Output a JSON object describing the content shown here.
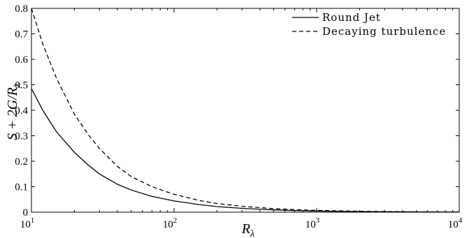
{
  "chart_data": {
    "type": "line",
    "xscale": "log",
    "xlim": [
      10,
      10000
    ],
    "ylim": [
      0,
      0.8
    ],
    "xlabel": "R_λ",
    "ylabel": "S + 2G/R_λ",
    "xticks": [
      {
        "value": 10,
        "base": "10",
        "exp": "1"
      },
      {
        "value": 100,
        "base": "10",
        "exp": "2"
      },
      {
        "value": 1000,
        "base": "10",
        "exp": "3"
      },
      {
        "value": 10000,
        "base": "10",
        "exp": "4"
      }
    ],
    "yticks": [
      {
        "value": 0,
        "label": "0"
      },
      {
        "value": 0.1,
        "label": "0.1"
      },
      {
        "value": 0.2,
        "label": "0.2"
      },
      {
        "value": 0.3,
        "label": "0.3"
      },
      {
        "value": 0.4,
        "label": "0.4"
      },
      {
        "value": 0.5,
        "label": "0.5"
      },
      {
        "value": 0.6,
        "label": "0.6"
      },
      {
        "value": 0.7,
        "label": "0.7"
      },
      {
        "value": 0.8,
        "label": "0.8"
      }
    ],
    "grid": false,
    "legend_position": "top-right",
    "series": [
      {
        "name": "Round Jet",
        "style": "solid",
        "color": "#000000",
        "x": [
          10,
          12,
          15,
          20,
          25,
          30,
          40,
          50,
          70,
          100,
          150,
          200,
          300,
          500,
          700,
          1000,
          2000,
          5000,
          10000
        ],
        "y": [
          0.485,
          0.4,
          0.315,
          0.235,
          0.185,
          0.15,
          0.11,
          0.087,
          0.062,
          0.044,
          0.03,
          0.022,
          0.015,
          0.009,
          0.0065,
          0.0045,
          0.0023,
          0.0009,
          0.0005
        ]
      },
      {
        "name": "Decaying turbulence",
        "style": "dashed",
        "color": "#000000",
        "x": [
          10,
          12,
          15,
          20,
          25,
          30,
          40,
          50,
          70,
          100,
          150,
          200,
          300,
          500,
          700,
          1000,
          2000,
          5000,
          10000
        ],
        "y": [
          0.8,
          0.66,
          0.525,
          0.385,
          0.305,
          0.25,
          0.18,
          0.14,
          0.1,
          0.07,
          0.046,
          0.034,
          0.023,
          0.014,
          0.01,
          0.007,
          0.0035,
          0.0014,
          0.0007
        ]
      }
    ]
  }
}
